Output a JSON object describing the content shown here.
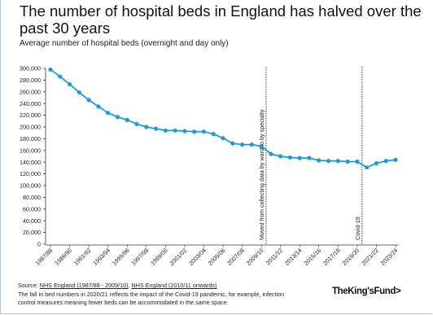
{
  "header": {
    "title": "The number of hospital beds in England has halved over the past 30 years",
    "subtitle": "Average number of hospital beds (overnight and day only)"
  },
  "chart_data": {
    "type": "line",
    "title": "The number of hospital beds in England has halved over the past 30 years",
    "subtitle": "Average number of hospital beds (overnight and day only)",
    "xlabel": "",
    "ylabel": "",
    "ylim": [
      0,
      300000
    ],
    "yticks": [
      0,
      20000,
      40000,
      60000,
      80000,
      100000,
      120000,
      140000,
      160000,
      180000,
      200000,
      220000,
      240000,
      260000,
      280000,
      300000
    ],
    "ytick_labels": [
      "0",
      "20,000",
      "40,000",
      "60,000",
      "80,000",
      "100,000",
      "120,000",
      "140,000",
      "160,000",
      "180,000",
      "200,000",
      "220,000",
      "240,000",
      "260,000",
      "280,000",
      "300,000"
    ],
    "categories": [
      "1987/88",
      "1988/89",
      "1989/90",
      "1990/91",
      "1991/92",
      "1992/93",
      "1993/94",
      "1994/95",
      "1995/96",
      "1996/97",
      "1997/98",
      "1998/99",
      "1999/00",
      "2000/01",
      "2001/02",
      "2002/03",
      "2003/04",
      "2004/05",
      "2005/06",
      "2006/07",
      "2007/08",
      "2008/09",
      "2009/10",
      "2010/11",
      "2011/12",
      "2012/13",
      "2013/14",
      "2014/15",
      "2015/16",
      "2016/17",
      "2017/18",
      "2018/19",
      "2019/20",
      "2020/21",
      "2021/22",
      "2022/23",
      "2023/24"
    ],
    "xtick_labels": [
      "1987/88",
      "1989/90",
      "1991/92",
      "1993/94",
      "1995/96",
      "1997/98",
      "1999/00",
      "2001/02",
      "2003/04",
      "2005/06",
      "2007/08",
      "2009/10",
      "2011/12",
      "2013/14",
      "2015/16",
      "2017/18",
      "2019/20",
      "2021/22",
      "2023/24"
    ],
    "series": [
      {
        "color": "#1e9bd7",
        "values": [
          298000,
          286000,
          273000,
          259000,
          246000,
          235000,
          224000,
          217000,
          212000,
          205000,
          200000,
          197000,
          194000,
          194000,
          193000,
          192000,
          192000,
          188000,
          181000,
          172000,
          170000,
          170000,
          167000,
          154000,
          150000,
          148000,
          147000,
          147000,
          143000,
          142000,
          142000,
          141000,
          141000,
          131000,
          138000,
          142000,
          144000
        ]
      }
    ],
    "annotations": [
      {
        "at": "2010/11",
        "text": "Moved from collecting data by ward to by specialty"
      },
      {
        "at": "2020/21",
        "text": "Covid-19"
      }
    ],
    "grid": false,
    "legend": "none"
  },
  "footer": {
    "source_label": "Source:",
    "source_link_1": "NHS England (1987/88 - 2009/10)",
    "source_sep": ",",
    "source_link_2": "NHS England (2010/11 onwards)",
    "note": "The fall in bed numbers in 2020/21 reflects the impact of the Covid-19 pandemic, for example, infection control measures meaning fewer beds can be accommodated in the same space.",
    "brand": "TheKing'sFund>"
  }
}
